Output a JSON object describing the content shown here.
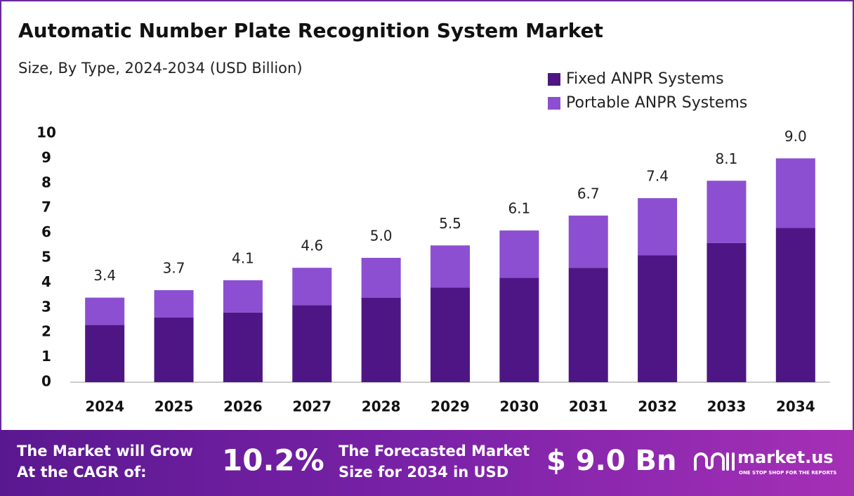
{
  "chart_data": {
    "type": "stacked_bar",
    "title": "Automatic Number Plate Recognition System Market",
    "subtitle": "Size, By Type, 2024-2034 (USD Billion)",
    "categories": [
      "2024",
      "2025",
      "2026",
      "2027",
      "2028",
      "2029",
      "2030",
      "2031",
      "2032",
      "2033",
      "2034"
    ],
    "series": [
      {
        "name": "Fixed ANPR Systems",
        "color": "#4e1684",
        "values": [
          2.3,
          2.6,
          2.8,
          3.1,
          3.4,
          3.8,
          4.2,
          4.6,
          5.1,
          5.6,
          6.2
        ]
      },
      {
        "name": "Portable ANPR Systems",
        "color": "#8c4fd1",
        "values": [
          1.1,
          1.1,
          1.3,
          1.5,
          1.6,
          1.7,
          1.9,
          2.1,
          2.3,
          2.5,
          2.8
        ]
      }
    ],
    "total_labels": [
      "3.4",
      "3.7",
      "4.1",
      "4.6",
      "5.0",
      "5.5",
      "6.1",
      "6.7",
      "7.4",
      "8.1",
      "9.0"
    ],
    "ylim": [
      0,
      10
    ],
    "yticks": [
      0,
      1,
      2,
      3,
      4,
      5,
      6,
      7,
      8,
      9,
      10
    ],
    "grid": false,
    "legend": "top-right"
  },
  "banner": {
    "cagr_text": [
      "The Market will Grow",
      "At the CAGR of:"
    ],
    "cagr": "10.2%",
    "forecast_text": [
      "The Forecasted Market",
      "Size for 2034 in USD"
    ],
    "forecast": "$ 9.0 Bn",
    "brand": "market.us",
    "tagline": "ONE STOP SHOP FOR THE REPORTS"
  }
}
